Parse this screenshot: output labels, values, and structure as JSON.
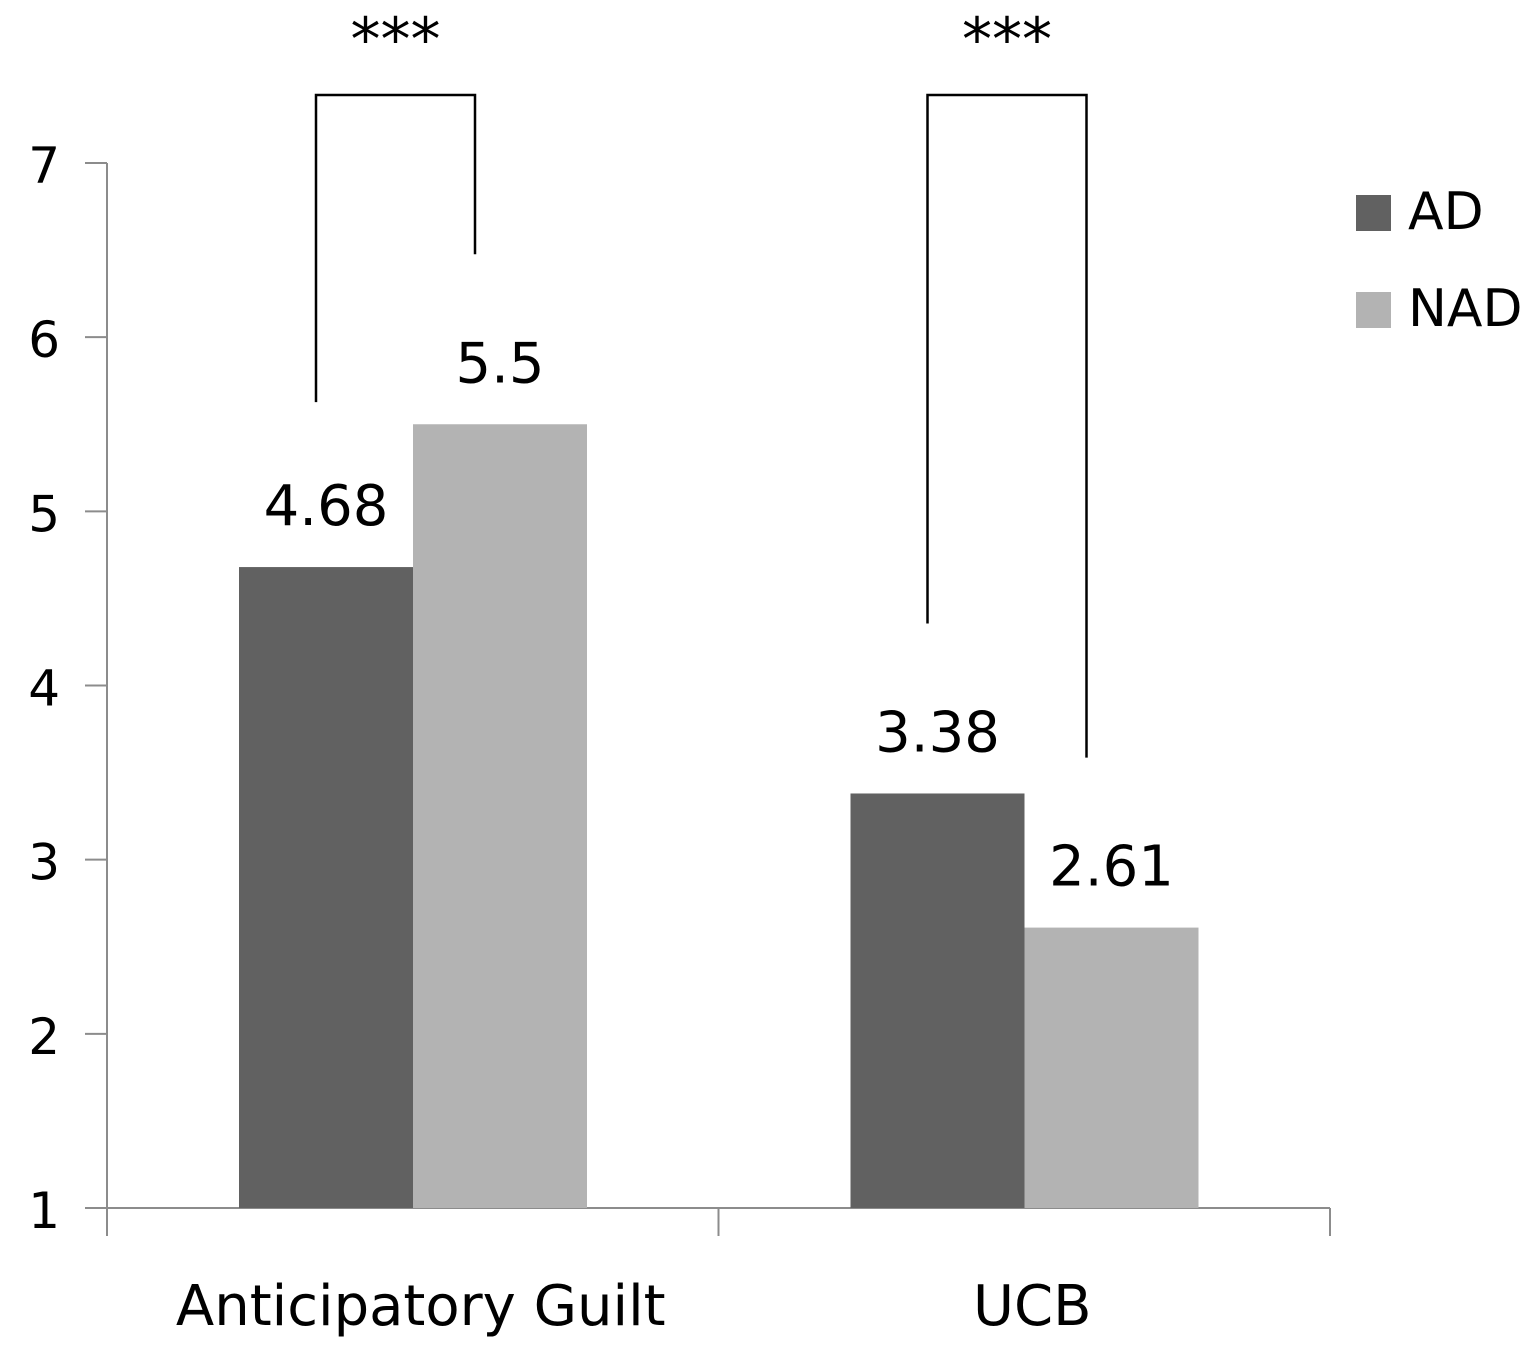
{
  "chart_data": {
    "type": "bar",
    "title": "",
    "xlabel": "",
    "ylabel": "",
    "categories": [
      "Anticipatory Guilt",
      "UCB"
    ],
    "series": [
      {
        "name": "AD",
        "values": [
          4.68,
          3.38
        ],
        "color": "#616161"
      },
      {
        "name": "NAD",
        "values": [
          5.5,
          2.61
        ],
        "color": "#b3b3b3"
      }
    ],
    "data_labels": [
      [
        "4.68",
        "3.38"
      ],
      [
        "5.5",
        "2.61"
      ]
    ],
    "ylim": [
      1,
      7
    ],
    "yticks": [
      1,
      2,
      3,
      4,
      5,
      6,
      7
    ],
    "grid": false,
    "legend_position": "top-right",
    "annotations": [
      {
        "text": "***",
        "category": "Anticipatory Guilt"
      },
      {
        "text": "***",
        "category": "UCB"
      }
    ]
  }
}
